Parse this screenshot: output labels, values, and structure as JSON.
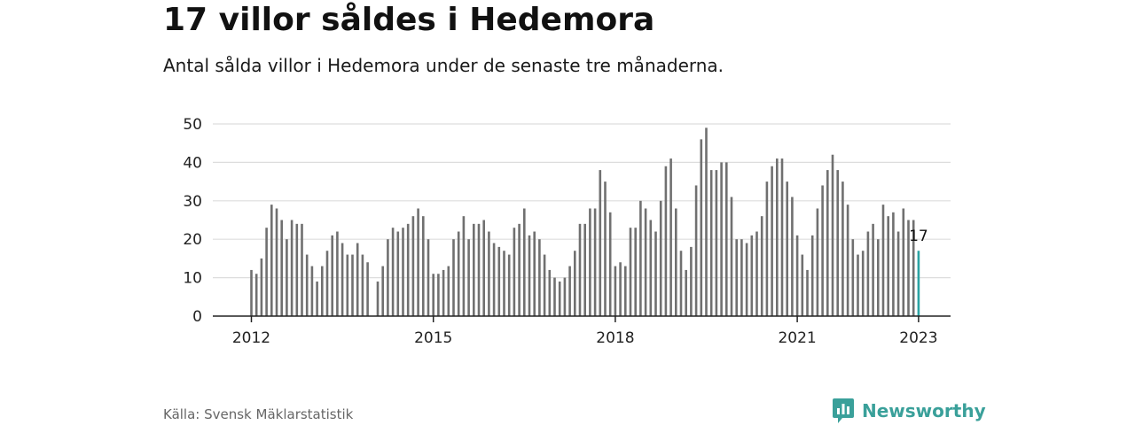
{
  "header": {
    "title": "17 villor såldes i Hedemora",
    "subtitle": "Antal sålda villor i Hedemora under de senaste tre månaderna."
  },
  "footer": {
    "source": "Källa: Svensk Mäklarstatistik",
    "brand": "Newsworthy"
  },
  "colors": {
    "bar": "#707070",
    "highlight": "#2ba3a3",
    "grid": "#dddddd",
    "axis": "#222222",
    "brand": "#3aa09a"
  },
  "chart_data": {
    "type": "bar",
    "x_axis_type": "month",
    "start_month": "2012-01",
    "x_ticks": [
      "2012",
      "2015",
      "2018",
      "2021",
      "2023"
    ],
    "y_ticks": [
      0,
      10,
      20,
      30,
      40,
      50
    ],
    "ylim": [
      0,
      50
    ],
    "grid": true,
    "highlight_label": "17",
    "values": [
      12,
      11,
      15,
      23,
      29,
      28,
      25,
      20,
      25,
      24,
      24,
      16,
      13,
      9,
      13,
      17,
      21,
      22,
      19,
      16,
      16,
      19,
      16,
      14,
      null,
      9,
      13,
      20,
      23,
      22,
      23,
      24,
      26,
      28,
      26,
      20,
      11,
      11,
      12,
      13,
      20,
      22,
      26,
      20,
      24,
      24,
      25,
      22,
      19,
      18,
      17,
      16,
      23,
      24,
      28,
      21,
      22,
      20,
      16,
      12,
      10,
      9,
      10,
      13,
      17,
      24,
      24,
      28,
      28,
      38,
      35,
      27,
      13,
      14,
      13,
      23,
      23,
      30,
      28,
      25,
      22,
      30,
      39,
      41,
      28,
      17,
      12,
      18,
      34,
      46,
      49,
      38,
      38,
      40,
      40,
      31,
      20,
      20,
      19,
      21,
      22,
      26,
      35,
      39,
      41,
      41,
      35,
      31,
      21,
      16,
      12,
      21,
      28,
      34,
      38,
      42,
      38,
      35,
      29,
      20,
      16,
      17,
      22,
      24,
      20,
      29,
      26,
      27,
      22,
      28,
      25,
      25,
      17
    ]
  }
}
